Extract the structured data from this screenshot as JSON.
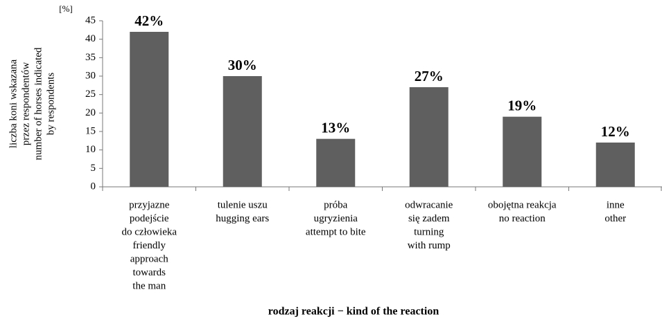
{
  "chart_data": {
    "type": "bar",
    "unit_label": "[%]",
    "y_label": [
      "liczba koni wskazana",
      "przez respondentów",
      "number of horses indicated",
      "by respondents"
    ],
    "x_label": "rodzaj reakcji − kind of the reaction",
    "categories": [
      [
        "przyjazne",
        "podejście",
        "do człowieka",
        "friendly",
        "approach",
        "towards",
        "the man"
      ],
      [
        "tulenie uszu",
        "hugging ears"
      ],
      [
        "próba",
        "ugryzienia",
        "attempt to bite"
      ],
      [
        "odwracanie",
        "się zadem",
        "turning",
        "with rump"
      ],
      [
        "obojętna reakcja",
        "no reaction"
      ],
      [
        "inne",
        "other"
      ]
    ],
    "values": [
      42,
      30,
      13,
      27,
      19,
      12
    ],
    "value_labels": [
      "42%",
      "30%",
      "13%",
      "27%",
      "19%",
      "12%"
    ],
    "color": "#5f5f5f",
    "ylim": [
      0,
      45
    ],
    "yticks": [
      0,
      5,
      10,
      15,
      20,
      25,
      30,
      35,
      40,
      45
    ],
    "grid": false
  }
}
